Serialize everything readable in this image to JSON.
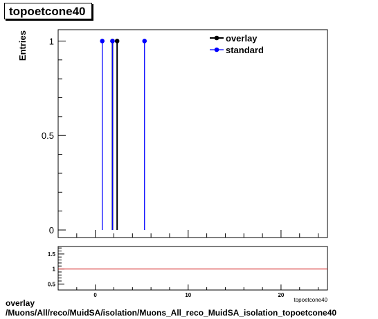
{
  "title": "topoetcone40",
  "footer": {
    "line1": "overlay",
    "line2": "/Muons/All/reco/MuidSA/isolation/Muons_All_reco_MuidSA_isolation_topoetcone40"
  },
  "colors": {
    "overlay": "#000000",
    "standard": "#0000ff",
    "ratio_line": "#cc0000"
  },
  "chart_data": [
    {
      "type": "scatter",
      "title": "topoetcone40",
      "ylabel": "Entries",
      "xlim": [
        -4,
        25
      ],
      "ylim": [
        -0.04,
        1.06
      ],
      "yticks": [
        0,
        0.5,
        1
      ],
      "ytick_labels": [
        "0",
        "0.5",
        "1"
      ],
      "legend": {
        "placement": "top-right",
        "entries": [
          "overlay",
          "standard"
        ]
      },
      "series": [
        {
          "name": "overlay",
          "x": [
            1.85,
            2.35
          ],
          "y": [
            1,
            1
          ]
        },
        {
          "name": "standard",
          "x": [
            0.75,
            1.85,
            5.3
          ],
          "y": [
            1,
            1,
            1
          ]
        }
      ]
    },
    {
      "type": "line",
      "xlabel": "topoetcone40",
      "xlim": [
        -4,
        25
      ],
      "ylim": [
        0.3,
        1.75
      ],
      "xticks": [
        0,
        10,
        20
      ],
      "xtick_labels": [
        "0",
        "10",
        "20"
      ],
      "yticks": [
        0.5,
        1,
        1.5
      ],
      "ytick_labels": [
        "0.5",
        "1",
        "1.5"
      ],
      "reference_line": 1
    }
  ]
}
